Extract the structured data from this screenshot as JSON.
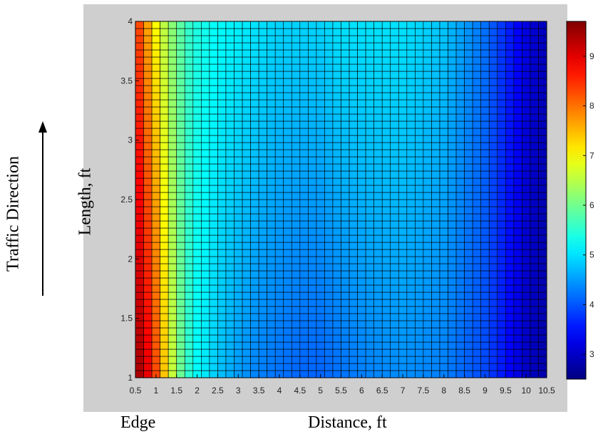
{
  "chart_data": {
    "type": "heatmap",
    "xlabel": "Distance, ft",
    "ylabel": "Length, ft",
    "x_annotation": "Edge",
    "side_annotation": "Traffic Direction",
    "xlim": [
      0.5,
      10.5
    ],
    "ylim": [
      1,
      4
    ],
    "xticks": [
      "0.5",
      "1",
      "1.5",
      "2",
      "2.5",
      "3",
      "3.5",
      "4",
      "4.5",
      "5",
      "5.5",
      "6",
      "6.5",
      "7",
      "7.5",
      "8",
      "8.5",
      "9",
      "9.5",
      "10",
      "10.5"
    ],
    "yticks": [
      "1",
      "1.5",
      "2",
      "2.5",
      "3",
      "3.5",
      "4"
    ],
    "grid_columns": 50,
    "grid_rows": 50,
    "colorbar": {
      "colormap": "jet",
      "range": [
        2.5,
        9.7
      ],
      "ticks": [
        "3",
        "4",
        "5",
        "6",
        "7",
        "8",
        "9"
      ]
    },
    "profile": {
      "description_free": true,
      "x": [
        0.5,
        0.75,
        1.0,
        1.25,
        1.5,
        1.75,
        2.0,
        2.5,
        3.0,
        3.5,
        4.0,
        4.5,
        5.0,
        5.5,
        6.0,
        7.0,
        8.0,
        8.5,
        9.0,
        9.5,
        10.0,
        10.5
      ],
      "value_at_y1": [
        9.6,
        9.1,
        8.3,
        7.2,
        6.2,
        5.6,
        5.2,
        4.8,
        4.5,
        4.3,
        4.2,
        4.1,
        4.1,
        4.2,
        4.3,
        4.4,
        4.3,
        4.1,
        3.9,
        3.5,
        3.0,
        2.8
      ],
      "value_at_y4": [
        8.6,
        7.8,
        7.0,
        6.4,
        6.0,
        5.6,
        5.4,
        5.2,
        5.1,
        5.0,
        4.9,
        4.9,
        4.9,
        5.0,
        5.0,
        5.0,
        4.8,
        4.5,
        4.2,
        3.7,
        3.2,
        2.9
      ]
    }
  }
}
